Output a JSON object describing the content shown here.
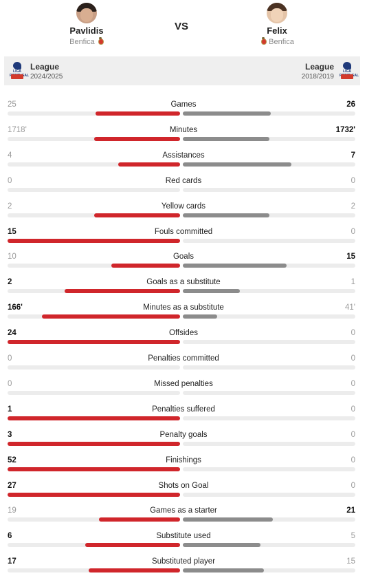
{
  "player_left": {
    "name": "Pavlidis",
    "team": "Benfica",
    "avatar_icon": "player-photo"
  },
  "player_right": {
    "name": "Felix",
    "team": "Benfica",
    "avatar_icon": "player-photo"
  },
  "vs_label": "VS",
  "league_left": {
    "name": "League",
    "season": "2024/2025",
    "logo_text": "LIGA PORTUGAL"
  },
  "league_right": {
    "name": "League",
    "season": "2018/2019",
    "logo_text": "LIGA PORTUGAL"
  },
  "colors": {
    "left_bar": "#d0262b",
    "right_bar": "#8c8c8c",
    "track": "#ececec",
    "league_bar_bg": "#efefef"
  },
  "stats": [
    {
      "label": "Games",
      "left": "25",
      "right": "26",
      "left_fill": 0.49,
      "right_fill": 0.51
    },
    {
      "label": "Minutes",
      "left": "1718'",
      "right": "1732'",
      "left_fill": 0.5,
      "right_fill": 0.5
    },
    {
      "label": "Assistances",
      "left": "4",
      "right": "7",
      "left_fill": 0.36,
      "right_fill": 0.63
    },
    {
      "label": "Red cards",
      "left": "0",
      "right": "0",
      "left_fill": 0,
      "right_fill": 0
    },
    {
      "label": "Yellow cards",
      "left": "2",
      "right": "2",
      "left_fill": 0.5,
      "right_fill": 0.5
    },
    {
      "label": "Fouls committed",
      "left": "15",
      "right": "0",
      "left_fill": 1,
      "right_fill": 0
    },
    {
      "label": "Goals",
      "left": "10",
      "right": "15",
      "left_fill": 0.4,
      "right_fill": 0.6
    },
    {
      "label": "Goals as a substitute",
      "left": "2",
      "right": "1",
      "left_fill": 0.67,
      "right_fill": 0.33
    },
    {
      "label": "Minutes as a substitute",
      "left": "166'",
      "right": "41'",
      "left_fill": 0.8,
      "right_fill": 0.2
    },
    {
      "label": "Offsides",
      "left": "24",
      "right": "0",
      "left_fill": 1,
      "right_fill": 0
    },
    {
      "label": "Penalties committed",
      "left": "0",
      "right": "0",
      "left_fill": 0,
      "right_fill": 0
    },
    {
      "label": "Missed penalties",
      "left": "0",
      "right": "0",
      "left_fill": 0,
      "right_fill": 0
    },
    {
      "label": "Penalties suffered",
      "left": "1",
      "right": "0",
      "left_fill": 1,
      "right_fill": 0
    },
    {
      "label": "Penalty goals",
      "left": "3",
      "right": "0",
      "left_fill": 1,
      "right_fill": 0
    },
    {
      "label": "Finishings",
      "left": "52",
      "right": "0",
      "left_fill": 1,
      "right_fill": 0
    },
    {
      "label": "Shots on Goal",
      "left": "27",
      "right": "0",
      "left_fill": 1,
      "right_fill": 0
    },
    {
      "label": "Games as a starter",
      "left": "19",
      "right": "21",
      "left_fill": 0.47,
      "right_fill": 0.52
    },
    {
      "label": "Substitute used",
      "left": "6",
      "right": "5",
      "left_fill": 0.55,
      "right_fill": 0.45
    },
    {
      "label": "Substituted player",
      "left": "17",
      "right": "15",
      "left_fill": 0.53,
      "right_fill": 0.47
    }
  ]
}
